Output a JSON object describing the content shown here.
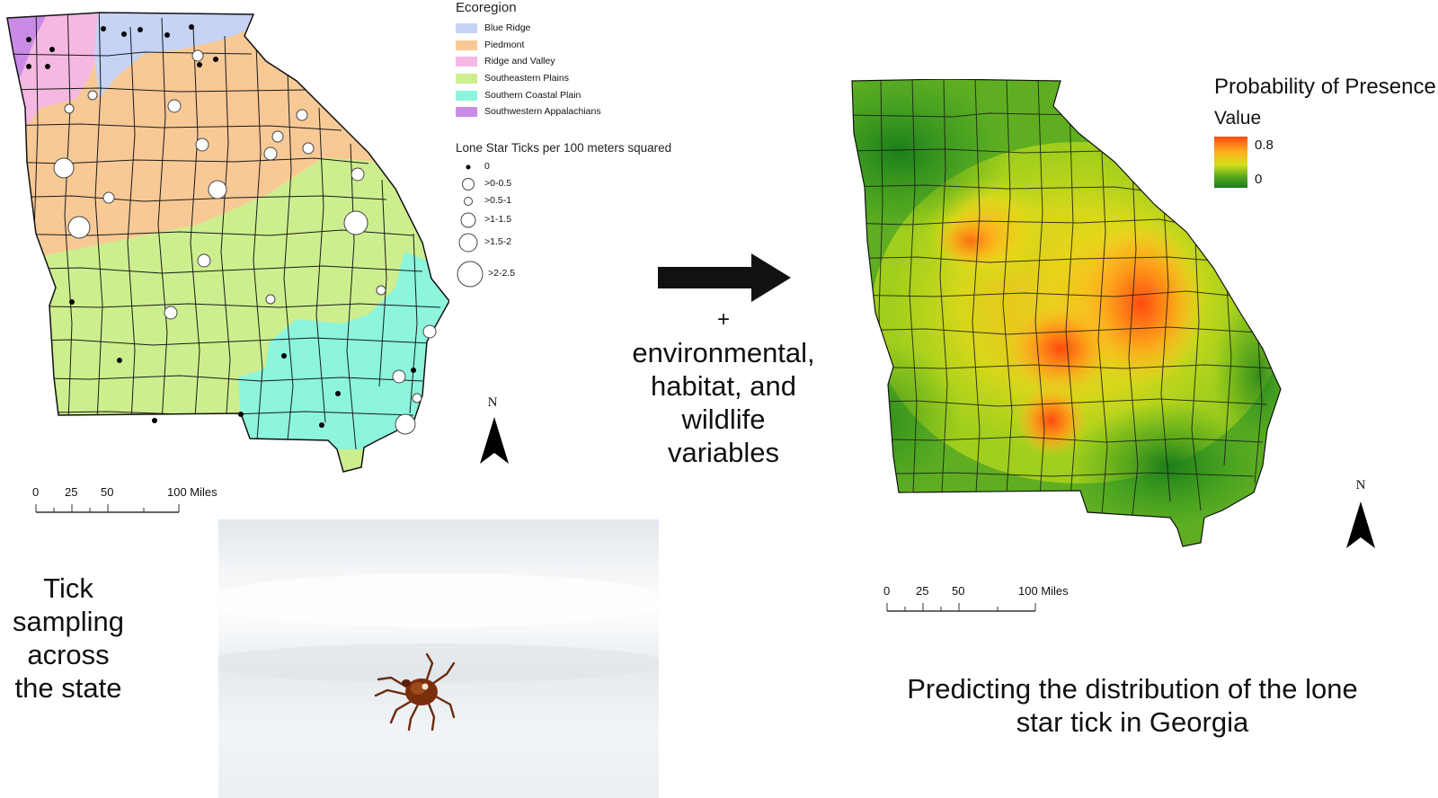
{
  "left_map": {
    "legend": {
      "ecoregion_title": "Ecoregion",
      "ecoregions": [
        {
          "label": "Blue Ridge",
          "color": "#c6d3f5"
        },
        {
          "label": "Piedmont",
          "color": "#f8c995"
        },
        {
          "label": "Ridge and Valley",
          "color": "#f4b8e2"
        },
        {
          "label": "Southeastern Plains",
          "color": "#cdee8f"
        },
        {
          "label": "Southern Coastal Plain",
          "color": "#8cf5dc"
        },
        {
          "label": "Southwestern Appalachians",
          "color": "#c98be6"
        }
      ],
      "size_title": "Lone Star Ticks per 100 meters squared",
      "size_classes": [
        "0",
        ">0-0.5",
        ">0.5-1",
        ">1-1.5",
        ">1.5-2",
        ">2-2.5"
      ]
    },
    "north_label": "N",
    "scale": {
      "ticks": [
        "0",
        "25",
        "50",
        "100 Miles"
      ]
    }
  },
  "middle": {
    "plus": "+",
    "variables_lines": [
      "environmental,",
      "habitat, and",
      "wildlife",
      "variables"
    ]
  },
  "captions": {
    "left_lines": [
      "Tick",
      "sampling",
      "across",
      "the state"
    ],
    "right_lines": [
      "Predicting the distribution of the lone",
      "star tick in Georgia"
    ]
  },
  "right_map": {
    "legend_title": "Probability of Presence",
    "value_label": "Value",
    "max_value": "0.8",
    "min_value": "0",
    "gradient_high_color": "#ff4a12",
    "gradient_low_color": "#1a7d1a",
    "north_label": "N",
    "scale": {
      "ticks": [
        "0",
        "25",
        "50",
        "100 Miles"
      ]
    }
  }
}
